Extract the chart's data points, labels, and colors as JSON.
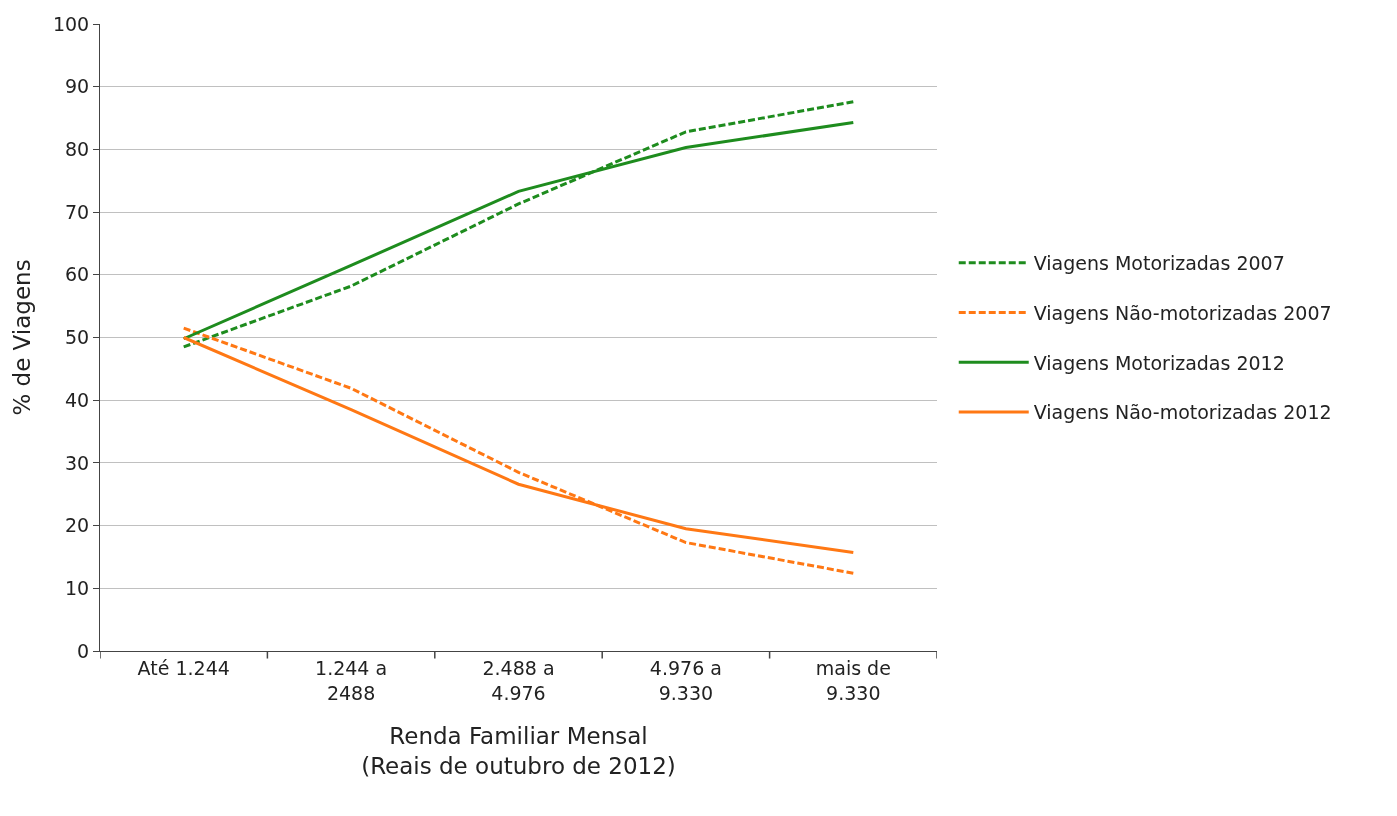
{
  "chart_data": {
    "type": "line",
    "xlabel": "Renda Familiar Mensal\n(Reais de outubro de 2012)",
    "ylabel": "% de Viagens",
    "categories": [
      "Até 1.244",
      "1.244 a\n2488",
      "2.488 a\n4.976",
      "4.976 a\n9.330",
      "mais de\n9.330"
    ],
    "ylim": [
      0,
      100
    ],
    "yticks": [
      0,
      10,
      20,
      30,
      40,
      50,
      60,
      70,
      80,
      90,
      100
    ],
    "grid": "y",
    "legend": "right",
    "marker": "none",
    "series": [
      {
        "name": "Viagens Motorizadas 2007",
        "color": "#1e8c1e",
        "line_style": "dashed",
        "values": [
          48.5,
          58.2,
          71.3,
          82.8,
          87.6
        ]
      },
      {
        "name": "Viagens Não-motorizadas 2007",
        "color": "#ff7814",
        "line_style": "dashed",
        "values": [
          51.5,
          41.9,
          28.5,
          17.3,
          12.4
        ]
      },
      {
        "name": "Viagens Motorizadas 2012",
        "color": "#1e8c1e",
        "line_style": "solid",
        "values": [
          49.8,
          61.5,
          73.3,
          80.3,
          84.3
        ]
      },
      {
        "name": "Viagens Não-motorizadas 2012",
        "color": "#ff7814",
        "line_style": "solid",
        "values": [
          50.0,
          38.5,
          26.6,
          19.5,
          15.7
        ]
      }
    ]
  }
}
